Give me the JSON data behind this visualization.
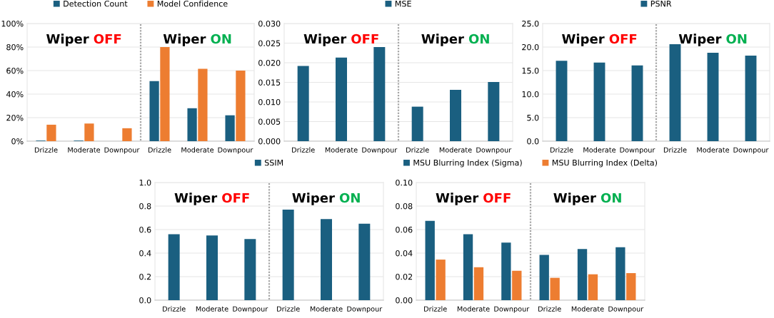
{
  "chart_data": [
    {
      "type": "bar",
      "categories": [
        "Drizzle",
        "Moderate",
        "Downpour",
        "Drizzle",
        "Moderate",
        "Downpour"
      ],
      "series": [
        {
          "name": "Detection Count",
          "color": "#1a5f80",
          "values": [
            0.5,
            0.5,
            0,
            51,
            28,
            22
          ]
        },
        {
          "name": "Model Confidence",
          "color": "#ed7d31",
          "values": [
            14,
            15,
            11,
            80,
            61.5,
            60
          ]
        }
      ],
      "ylim": [
        0,
        100
      ],
      "yticks": [
        {
          "value": 0,
          "label": "0%"
        },
        {
          "value": 20,
          "label": "20%"
        },
        {
          "value": 40,
          "label": "40%"
        },
        {
          "value": 60,
          "label": "60%"
        },
        {
          "value": 80,
          "label": "80%"
        },
        {
          "value": 100,
          "label": "100%"
        }
      ],
      "grid": "y",
      "legend": "top",
      "annotations": [
        "Wiper OFF",
        "Wiper ON"
      ]
    },
    {
      "type": "bar",
      "categories": [
        "Drizzle",
        "Moderate",
        "Downpour",
        "Drizzle",
        "Moderate",
        "Downpour"
      ],
      "series": [
        {
          "name": "MSE",
          "color": "#1a5f80",
          "values": [
            0.0192,
            0.0213,
            0.024,
            0.0088,
            0.0131,
            0.0151
          ]
        }
      ],
      "ylim": [
        0,
        0.03
      ],
      "yticks": [
        {
          "value": 0,
          "label": "0.000"
        },
        {
          "value": 0.005,
          "label": "0.005"
        },
        {
          "value": 0.01,
          "label": "0.010"
        },
        {
          "value": 0.015,
          "label": "0.015"
        },
        {
          "value": 0.02,
          "label": "0.020"
        },
        {
          "value": 0.025,
          "label": "0.025"
        },
        {
          "value": 0.03,
          "label": "0.030"
        }
      ],
      "grid": "y",
      "legend": "top",
      "annotations": [
        "Wiper OFF",
        "Wiper ON"
      ]
    },
    {
      "type": "bar",
      "categories": [
        "Drizzle",
        "Moderate",
        "Downpour",
        "Drizzle",
        "Moderate",
        "Downpour"
      ],
      "series": [
        {
          "name": "PSNR",
          "color": "#1a5f80",
          "values": [
            17.1,
            16.7,
            16.1,
            20.6,
            18.8,
            18.2
          ]
        }
      ],
      "ylim": [
        0,
        25
      ],
      "yticks": [
        {
          "value": 0,
          "label": "0.0"
        },
        {
          "value": 5,
          "label": "5.0"
        },
        {
          "value": 10,
          "label": "10.0"
        },
        {
          "value": 15,
          "label": "15.0"
        },
        {
          "value": 20,
          "label": "20.0"
        },
        {
          "value": 25,
          "label": "25.0"
        }
      ],
      "grid": "y",
      "legend": "top",
      "annotations": [
        "Wiper OFF",
        "Wiper ON"
      ]
    },
    {
      "type": "bar",
      "categories": [
        "Drizzle",
        "Moderate",
        "Downpour",
        "Drizzle",
        "Moderate",
        "Downpour"
      ],
      "series": [
        {
          "name": "SSIM",
          "color": "#1a5f80",
          "values": [
            0.56,
            0.55,
            0.52,
            0.77,
            0.69,
            0.65
          ]
        }
      ],
      "ylim": [
        0,
        1
      ],
      "yticks": [
        {
          "value": 0,
          "label": "0.0"
        },
        {
          "value": 0.2,
          "label": "0.2"
        },
        {
          "value": 0.4,
          "label": "0.4"
        },
        {
          "value": 0.6,
          "label": "0.6"
        },
        {
          "value": 0.8,
          "label": "0.8"
        },
        {
          "value": 1,
          "label": "1.0"
        }
      ],
      "grid": "y",
      "legend": "top",
      "annotations": [
        "Wiper OFF",
        "Wiper ON"
      ]
    },
    {
      "type": "bar",
      "categories": [
        "Drizzle",
        "Moderate",
        "Downpour",
        "Drizzle",
        "Moderate",
        "Downpour"
      ],
      "series": [
        {
          "name": "MSU Blurring Index (Sigma)",
          "color": "#1a5f80",
          "values": [
            0.0675,
            0.056,
            0.049,
            0.0385,
            0.0435,
            0.045
          ]
        },
        {
          "name": "MSU Blurring Index (Delta)",
          "color": "#ed7d31",
          "values": [
            0.0345,
            0.028,
            0.025,
            0.019,
            0.022,
            0.023
          ]
        }
      ],
      "ylim": [
        0,
        0.1
      ],
      "yticks": [
        {
          "value": 0,
          "label": "0.00"
        },
        {
          "value": 0.02,
          "label": "0.02"
        },
        {
          "value": 0.04,
          "label": "0.04"
        },
        {
          "value": 0.06,
          "label": "0.06"
        },
        {
          "value": 0.08,
          "label": "0.08"
        },
        {
          "value": 0.1,
          "label": "0.10"
        }
      ],
      "grid": "y",
      "legend": "top",
      "annotations": [
        "Wiper OFF",
        "Wiper ON"
      ]
    }
  ]
}
